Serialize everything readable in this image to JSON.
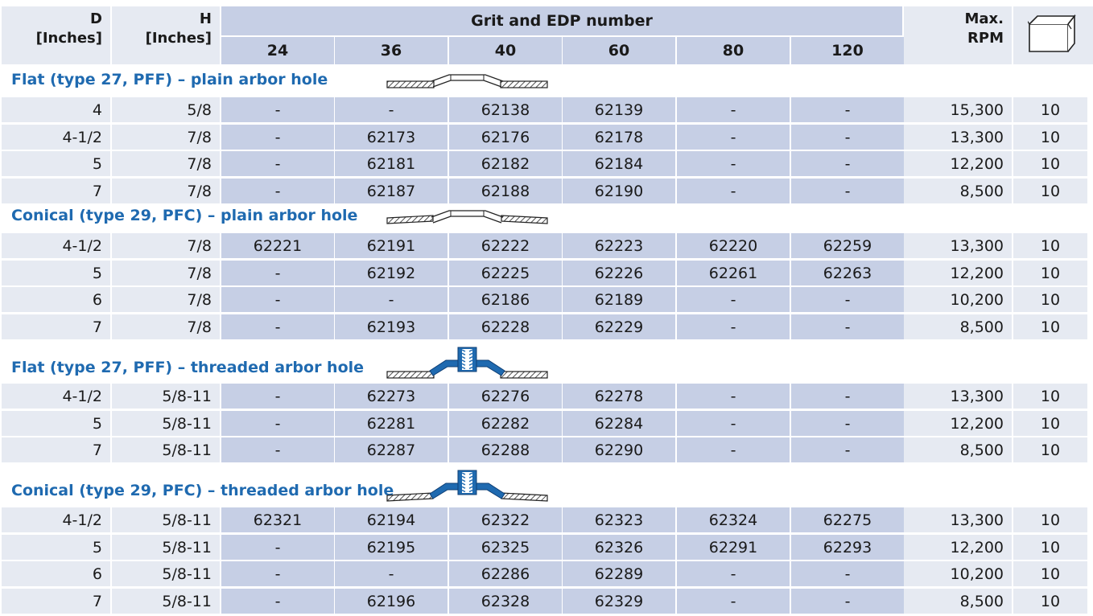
{
  "header": {
    "d_label_1": "D",
    "d_label_2": "[Inches]",
    "h_label_1": "H",
    "h_label_2": "[Inches]",
    "grit_title": "Grit and EDP number",
    "grits": [
      "24",
      "36",
      "40",
      "60",
      "80",
      "120"
    ],
    "rpm_label_1": "Max.",
    "rpm_label_2": "RPM",
    "box_icon": "box-icon"
  },
  "sections": [
    {
      "title": "Flat (type 27, PFF) – plain arbor hole",
      "icon": "flat-disc-plain-icon",
      "rows": [
        {
          "d": "4",
          "h": "5/8",
          "g": [
            "-",
            "-",
            "62138",
            "62139",
            "-",
            "-"
          ],
          "rpm": "15,300",
          "qty": "10"
        },
        {
          "d": "4-1/2",
          "h": "7/8",
          "g": [
            "-",
            "62173",
            "62176",
            "62178",
            "-",
            "-"
          ],
          "rpm": "13,300",
          "qty": "10"
        },
        {
          "d": "5",
          "h": "7/8",
          "g": [
            "-",
            "62181",
            "62182",
            "62184",
            "-",
            "-"
          ],
          "rpm": "12,200",
          "qty": "10"
        },
        {
          "d": "7",
          "h": "7/8",
          "g": [
            "-",
            "62187",
            "62188",
            "62190",
            "-",
            "-"
          ],
          "rpm": "8,500",
          "qty": "10"
        }
      ]
    },
    {
      "title": "Conical (type 29, PFC) – plain arbor hole",
      "icon": "conical-disc-plain-icon",
      "rows": [
        {
          "d": "4-1/2",
          "h": "7/8",
          "g": [
            "62221",
            "62191",
            "62222",
            "62223",
            "62220",
            "62259"
          ],
          "rpm": "13,300",
          "qty": "10"
        },
        {
          "d": "5",
          "h": "7/8",
          "g": [
            "-",
            "62192",
            "62225",
            "62226",
            "62261",
            "62263"
          ],
          "rpm": "12,200",
          "qty": "10"
        },
        {
          "d": "6",
          "h": "7/8",
          "g": [
            "-",
            "-",
            "62186",
            "62189",
            "-",
            "-"
          ],
          "rpm": "10,200",
          "qty": "10"
        },
        {
          "d": "7",
          "h": "7/8",
          "g": [
            "-",
            "62193",
            "62228",
            "62229",
            "-",
            "-"
          ],
          "rpm": "8,500",
          "qty": "10"
        }
      ]
    },
    {
      "title": "Flat (type 27, PFF) – threaded arbor hole",
      "icon": "flat-disc-threaded-icon",
      "rows": [
        {
          "d": "4-1/2",
          "h": "5/8-11",
          "g": [
            "-",
            "62273",
            "62276",
            "62278",
            "-",
            "-"
          ],
          "rpm": "13,300",
          "qty": "10"
        },
        {
          "d": "5",
          "h": "5/8-11",
          "g": [
            "-",
            "62281",
            "62282",
            "62284",
            "-",
            "-"
          ],
          "rpm": "12,200",
          "qty": "10"
        },
        {
          "d": "7",
          "h": "5/8-11",
          "g": [
            "-",
            "62287",
            "62288",
            "62290",
            "-",
            "-"
          ],
          "rpm": "8,500",
          "qty": "10"
        }
      ]
    },
    {
      "title": "Conical (type 29, PFC) – threaded arbor hole",
      "icon": "conical-disc-threaded-icon",
      "rows": [
        {
          "d": "4-1/2",
          "h": "5/8-11",
          "g": [
            "62321",
            "62194",
            "62322",
            "62323",
            "62324",
            "62275"
          ],
          "rpm": "13,300",
          "qty": "10"
        },
        {
          "d": "5",
          "h": "5/8-11",
          "g": [
            "-",
            "62195",
            "62325",
            "62326",
            "62291",
            "62293"
          ],
          "rpm": "12,200",
          "qty": "10"
        },
        {
          "d": "6",
          "h": "5/8-11",
          "g": [
            "-",
            "-",
            "62286",
            "62289",
            "-",
            "-"
          ],
          "rpm": "10,200",
          "qty": "10"
        },
        {
          "d": "7",
          "h": "5/8-11",
          "g": [
            "-",
            "62196",
            "62328",
            "62329",
            "-",
            "-"
          ],
          "rpm": "8,500",
          "qty": "10"
        }
      ]
    }
  ]
}
